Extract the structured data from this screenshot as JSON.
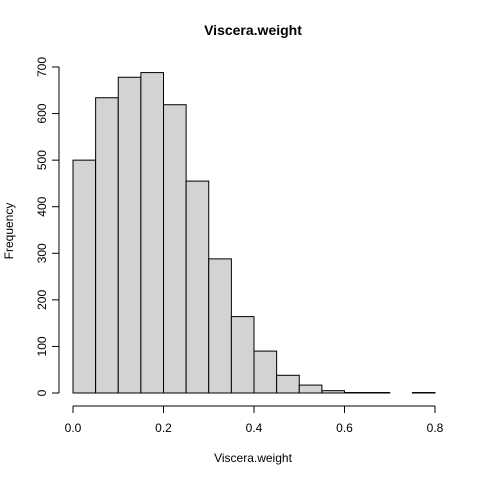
{
  "chart_data": {
    "type": "bar",
    "title": "Viscera.weight",
    "xlabel": "Viscera.weight",
    "ylabel": "Frequency",
    "bin_edges": [
      0.0,
      0.05,
      0.1,
      0.15,
      0.2,
      0.25,
      0.3,
      0.35,
      0.4,
      0.45,
      0.5,
      0.55,
      0.6,
      0.65,
      0.7,
      0.75,
      0.8
    ],
    "values": [
      500,
      634,
      678,
      688,
      619,
      455,
      288,
      164,
      90,
      38,
      17,
      5,
      1,
      1,
      0,
      1
    ],
    "xlim": [
      0.0,
      0.8
    ],
    "ylim": [
      0,
      700
    ],
    "x_ticks": [
      "0.0",
      "0.2",
      "0.4",
      "0.6",
      "0.8"
    ],
    "y_ticks": [
      "0",
      "100",
      "200",
      "300",
      "400",
      "500",
      "600",
      "700"
    ],
    "grid": false,
    "legend": "none"
  }
}
